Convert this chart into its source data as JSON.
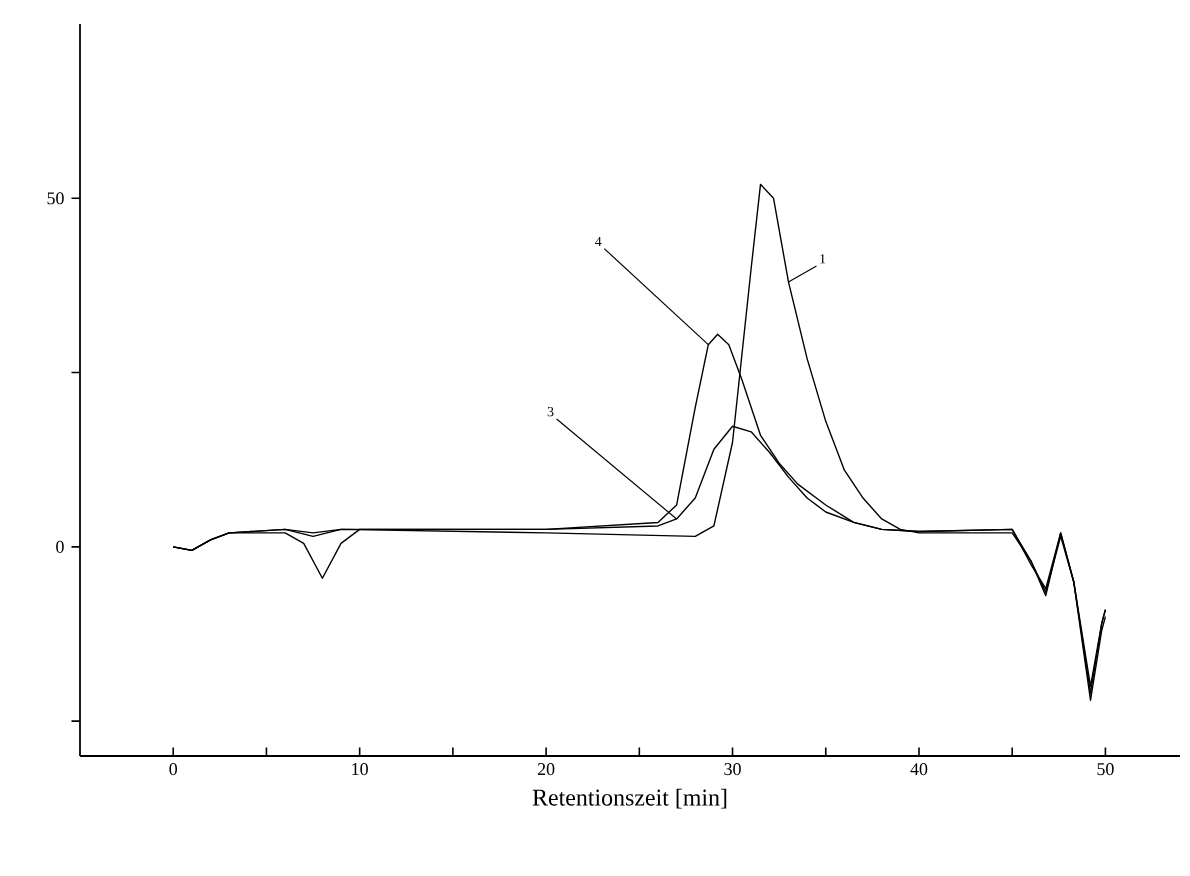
{
  "chart_data": {
    "type": "line",
    "xlabel": "Retentionszeit [min]",
    "xlim": [
      -5,
      54
    ],
    "ylim": [
      -30,
      75
    ],
    "xticks": [
      0,
      {
        "value": 5,
        "label": null
      },
      10,
      {
        "value": 15,
        "label": null
      },
      20,
      {
        "value": 25,
        "label": null
      },
      30,
      {
        "value": 35,
        "label": null
      },
      40,
      {
        "value": 45,
        "label": null
      },
      50
    ],
    "yticks": [
      {
        "value": -25,
        "label": null
      },
      0,
      {
        "value": 25,
        "label": null
      },
      50
    ],
    "series": [
      {
        "name": "1",
        "color": "#000000",
        "x": [
          0,
          1,
          2,
          3,
          6,
          7.5,
          9,
          20,
          28,
          29,
          30,
          31,
          31.5,
          32.2,
          33,
          34,
          35,
          36,
          37,
          38,
          39,
          40,
          45,
          46,
          46.8,
          47.6,
          48.3,
          49.2,
          49.8,
          50
        ],
        "values": [
          0,
          -0.5,
          1,
          2,
          2.5,
          1.5,
          2.5,
          2,
          1.5,
          3,
          15,
          40,
          52,
          50,
          38,
          27,
          18,
          11,
          7,
          4,
          2.5,
          2,
          2,
          -2,
          -7,
          2,
          -5,
          -22,
          -12,
          -10
        ]
      },
      {
        "name": "3",
        "color": "#000000",
        "x": [
          0,
          1,
          2,
          3,
          6,
          7,
          8,
          9,
          10,
          20,
          26,
          27,
          28,
          29,
          30,
          31,
          32,
          33,
          34,
          35,
          36.5,
          38,
          40,
          45,
          46,
          46.8,
          47.6,
          48.3,
          49.2,
          49.8,
          50
        ],
        "values": [
          0,
          -0.5,
          1,
          2,
          2,
          0.5,
          -4.5,
          0.5,
          2.5,
          2.5,
          3,
          4,
          7,
          14,
          17.3,
          16.5,
          13.5,
          10,
          7,
          5,
          3.5,
          2.5,
          2.2,
          2.5,
          -2,
          -6.5,
          1.5,
          -5,
          -21,
          -11,
          -9
        ]
      },
      {
        "name": "4",
        "color": "#000000",
        "x": [
          0,
          1,
          2,
          3,
          6,
          7.5,
          9,
          20,
          26,
          27,
          28,
          28.7,
          29.2,
          29.8,
          30.5,
          31.5,
          32.5,
          33.5,
          35,
          36.5,
          38,
          40,
          45,
          46,
          46.8,
          47.6,
          48.3,
          49.2,
          49.8,
          50
        ],
        "values": [
          0,
          -0.5,
          1,
          2,
          2.5,
          2,
          2.5,
          2.5,
          3.5,
          6,
          20,
          29,
          30.5,
          29,
          24,
          16,
          12,
          9,
          6,
          3.5,
          2.5,
          2.2,
          2.5,
          -2.5,
          -6,
          2,
          -5,
          -20,
          -11,
          -9
        ]
      }
    ]
  }
}
